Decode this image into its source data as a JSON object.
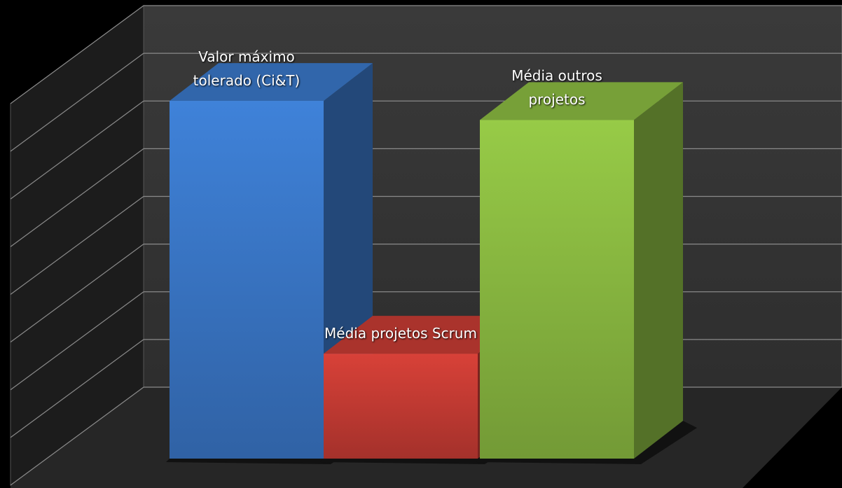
{
  "chart_data": {
    "type": "bar3d",
    "categories": [
      "Valor máximo tolerado (Ci&T)",
      "Média projetos Scrum",
      "Média outros projetos"
    ],
    "values": [
      7.5,
      2.2,
      7.1
    ],
    "colors": [
      "#3a78c9",
      "#c83c34",
      "#8cbc42"
    ],
    "ylim": [
      0,
      8
    ],
    "yticks": [
      0,
      1,
      2,
      3,
      4,
      5,
      6,
      7,
      8
    ],
    "grid": true
  }
}
